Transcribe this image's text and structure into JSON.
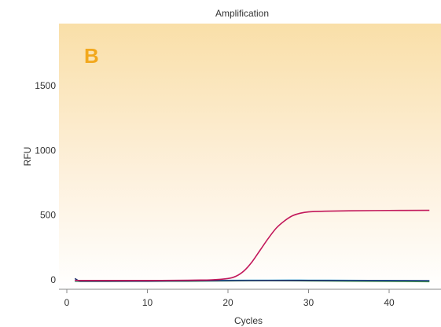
{
  "chart_data": {
    "type": "line",
    "title": "Amplification",
    "panel_label": "B",
    "xlabel": "Cycles",
    "ylabel": "RFU",
    "xlim": [
      0,
      46
    ],
    "ylim": [
      -120,
      1920
    ],
    "xticks": [
      0,
      10,
      20,
      30,
      40
    ],
    "yticks": [
      0,
      500,
      1000,
      1500
    ],
    "grid": false,
    "background": "gradient from #f9dfa8 (top) to #ffffff (bottom)",
    "series": [
      {
        "color": "#c2185b",
        "x": [
          1,
          5,
          10,
          15,
          18,
          20,
          21,
          22,
          23,
          24,
          25,
          26,
          27,
          28,
          29,
          30,
          32,
          35,
          40,
          45
        ],
        "y": [
          -5,
          -5,
          -5,
          -3,
          0,
          10,
          28,
          70,
          140,
          230,
          320,
          400,
          455,
          495,
          515,
          525,
          530,
          533,
          536,
          537
        ]
      },
      {
        "color": "#4caf50",
        "x": [
          1,
          5,
          10,
          15,
          20,
          25,
          30,
          35,
          40,
          45
        ],
        "y": [
          -12,
          -12,
          -11,
          -10,
          -8,
          -6,
          -8,
          -10,
          -12,
          -14
        ]
      },
      {
        "color": "#2a9fd6",
        "x": [
          1,
          5,
          10,
          15,
          20,
          25,
          30,
          35,
          40,
          45
        ],
        "y": [
          -8,
          -8,
          -7,
          -6,
          -4,
          -3,
          -3,
          -4,
          -5,
          -6
        ]
      },
      {
        "color": "#1f2d6b",
        "x": [
          1,
          1.5,
          2,
          5,
          10,
          15,
          20,
          25,
          30,
          35,
          40,
          45
        ],
        "y": [
          10,
          -8,
          -10,
          -10,
          -10,
          -8,
          -6,
          -5,
          -5,
          -6,
          -7,
          -8
        ]
      }
    ]
  }
}
